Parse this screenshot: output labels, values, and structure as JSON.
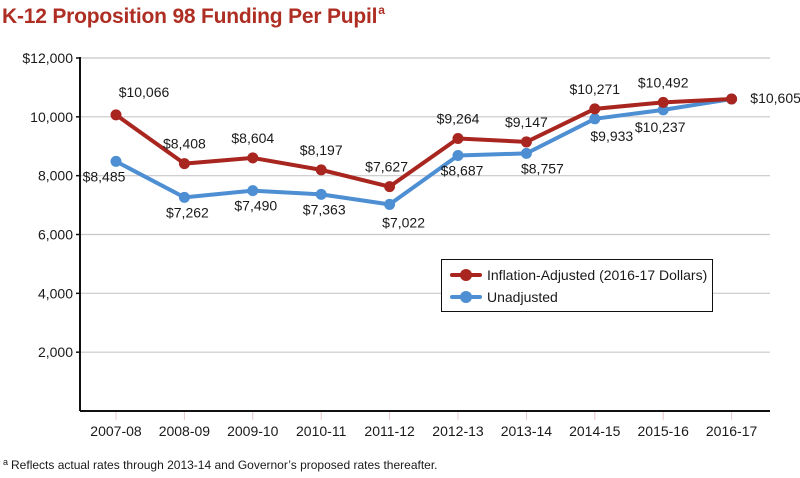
{
  "title": "K-12 Proposition 98 Funding Per Pupil",
  "title_superscript": "a",
  "footnote": {
    "marker": "a",
    "text": "Reflects actual rates through 2013-14 and Governor’s proposed rates thereafter."
  },
  "legend": {
    "items": [
      {
        "label": "Inflation-Adjusted (2016-17 Dollars)",
        "color": "#a8261f"
      },
      {
        "label": "Unadjusted",
        "color": "#4d8fd2"
      }
    ]
  },
  "y_ticks": [
    "$12,000",
    "10,000",
    "8,000",
    "6,000",
    "4,000",
    "2,000"
  ],
  "chart_data": {
    "type": "line",
    "title": "K-12 Proposition 98 Funding Per Pupil",
    "xlabel": "",
    "ylabel": "",
    "ylim": [
      0,
      12000
    ],
    "grid": true,
    "legend_position": "inside-right",
    "categories": [
      "2007-08",
      "2008-09",
      "2009-10",
      "2010-11",
      "2011-12",
      "2012-13",
      "2013-14",
      "2014-15",
      "2015-16",
      "2016-17"
    ],
    "series": [
      {
        "name": "Inflation-Adjusted (2016-17 Dollars)",
        "color": "#a8261f",
        "values": [
          10066,
          8408,
          8604,
          8197,
          7627,
          9264,
          9147,
          10271,
          10492,
          10605
        ],
        "labels": [
          "$10,066",
          "$8,408",
          "$8,604",
          "$8,197",
          "$7,627",
          "$9,264",
          "$9,147",
          "$10,271",
          "$10,492",
          "$10,605"
        ]
      },
      {
        "name": "Unadjusted",
        "color": "#4d8fd2",
        "values": [
          8485,
          7262,
          7490,
          7363,
          7022,
          8687,
          8757,
          9933,
          10237,
          10605
        ],
        "labels": [
          "$8,485",
          "$7,262",
          "$7,490",
          "$7,363",
          "$7,022",
          "$8,687",
          "$8,757",
          "$9,933",
          "$10,237",
          ""
        ]
      }
    ],
    "footnote": "Reflects actual rates through 2013-14 and Governor’s proposed rates thereafter."
  }
}
